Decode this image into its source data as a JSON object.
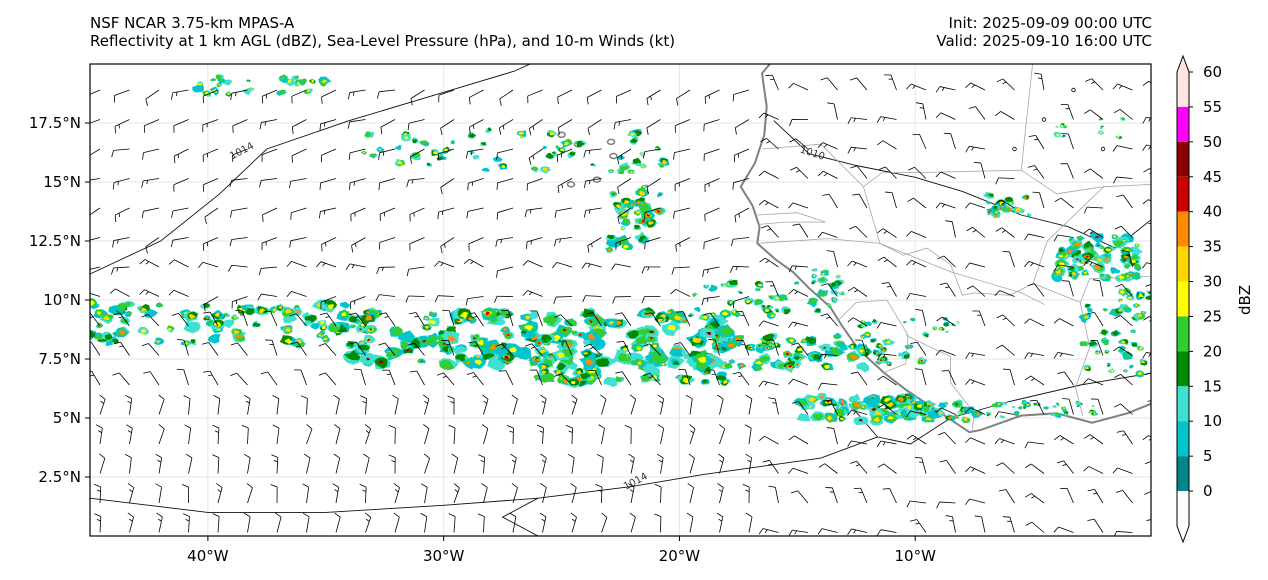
{
  "header": {
    "model": "NSF NCAR 3.75-km MPAS-A",
    "fields": "Reflectivity at 1 km AGL (dBZ), Sea-Level Pressure (hPa), and 10-m Winds (kt)",
    "init": "Init: 2025-09-09 00:00 UTC",
    "valid": "Valid: 2025-09-10 16:00 UTC"
  },
  "map": {
    "lon_range": [
      -45,
      0
    ],
    "lat_range": [
      0,
      20
    ],
    "x_ticks": [
      {
        "lon": -40,
        "label": "40°W"
      },
      {
        "lon": -30,
        "label": "30°W"
      },
      {
        "lon": -20,
        "label": "20°W"
      },
      {
        "lon": -10,
        "label": "10°W"
      }
    ],
    "y_ticks": [
      {
        "lat": 2.5,
        "label": "2.5°N"
      },
      {
        "lat": 5,
        "label": "5°N"
      },
      {
        "lat": 7.5,
        "label": "7.5°N"
      },
      {
        "lat": 10,
        "label": "10°N"
      },
      {
        "lat": 12.5,
        "label": "12.5°N"
      },
      {
        "lat": 15,
        "label": "15°N"
      },
      {
        "lat": 17.5,
        "label": "17.5°N"
      }
    ],
    "isobar_labels": [
      {
        "text": "1014",
        "lon": -38.5,
        "lat": 16.2
      },
      {
        "text": "1010",
        "lon": -14.4,
        "lat": 16.1
      },
      {
        "text": "1014",
        "lon": -21.8,
        "lat": 2.2
      }
    ]
  },
  "colorbar": {
    "title": "dBZ",
    "ticks": [
      "0",
      "5",
      "10",
      "15",
      "20",
      "25",
      "30",
      "35",
      "40",
      "45",
      "50",
      "55",
      "60"
    ],
    "colors": [
      "#ffffff",
      "#00868b",
      "#00c5cd",
      "#40e0d0",
      "#008b00",
      "#32cd32",
      "#ffff00",
      "#ffd700",
      "#ff8c00",
      "#cd0000",
      "#8b0000",
      "#ff00ff",
      "#ffe4e1"
    ]
  }
}
